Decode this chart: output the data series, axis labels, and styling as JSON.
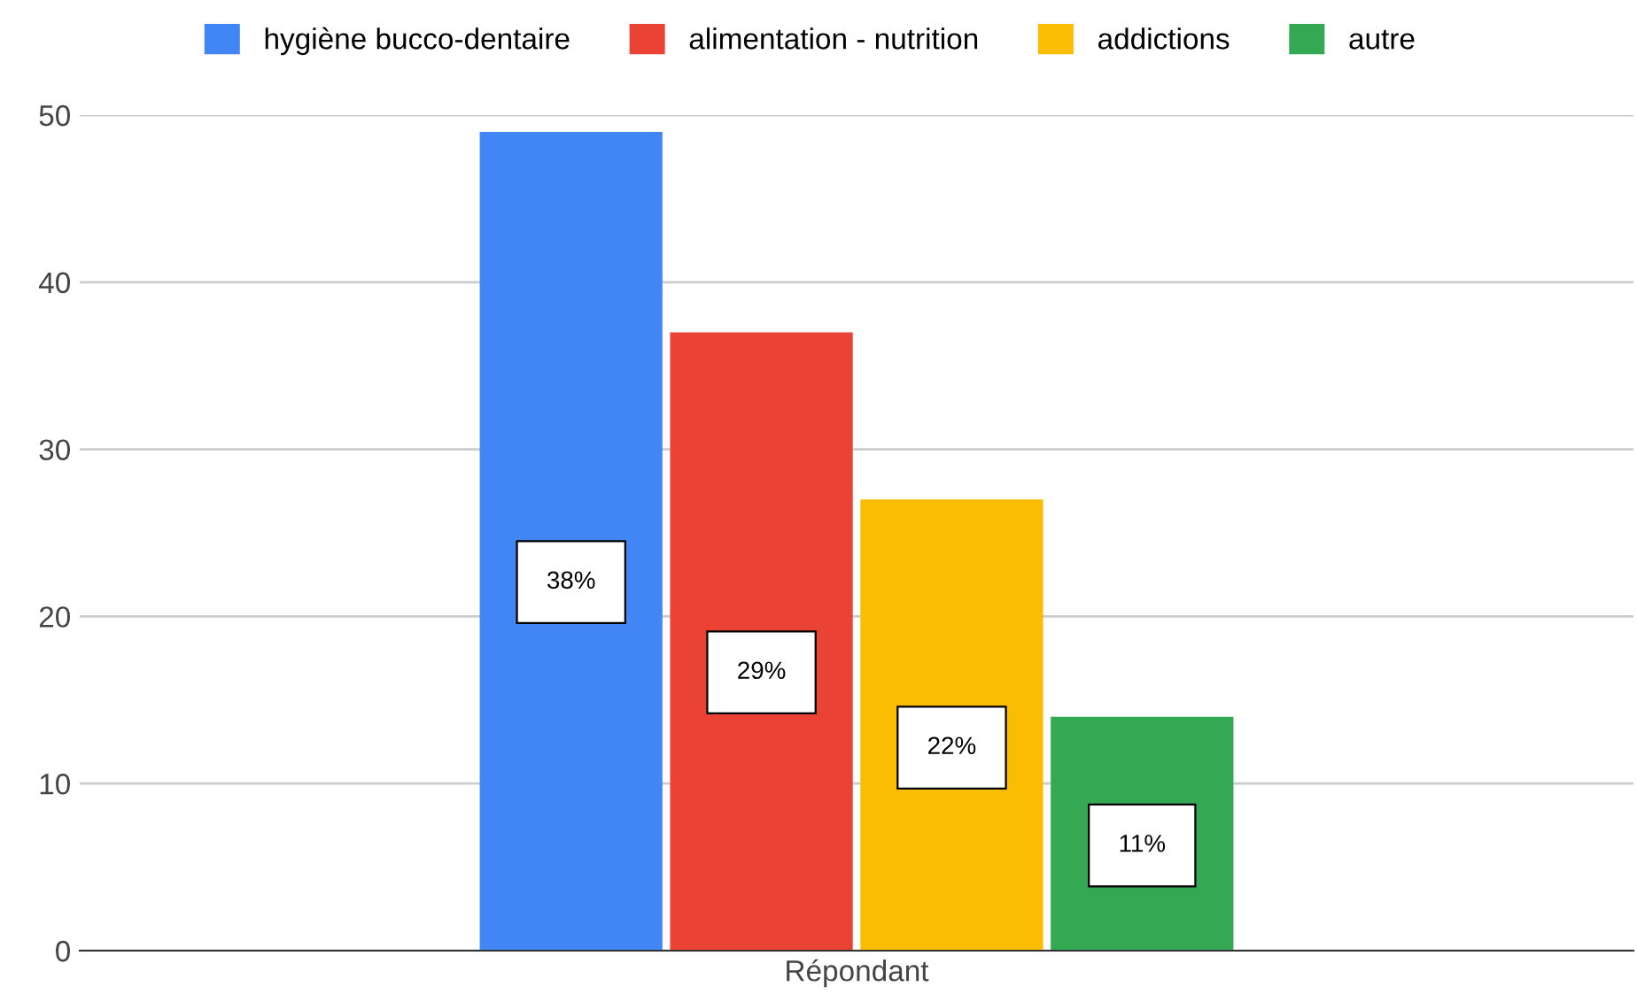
{
  "chart_data": {
    "type": "bar",
    "categories": [
      "Répondant"
    ],
    "series": [
      {
        "name": "hygiène bucco-dentaire",
        "color": "#4285f4",
        "values": [
          49
        ]
      },
      {
        "name": "alimentation - nutrition",
        "color": "#ea4335",
        "values": [
          37
        ]
      },
      {
        "name": "addictions",
        "color": "#fbbc04",
        "values": [
          27
        ]
      },
      {
        "name": "autre",
        "color": "#34a853",
        "values": [
          14
        ]
      }
    ],
    "annotations": [
      "38%",
      "29%",
      "22%",
      "11%"
    ],
    "ylim": [
      0,
      50
    ],
    "yticks": [
      0,
      10,
      20,
      30,
      40,
      50
    ],
    "grid": "y",
    "legend": "top"
  }
}
